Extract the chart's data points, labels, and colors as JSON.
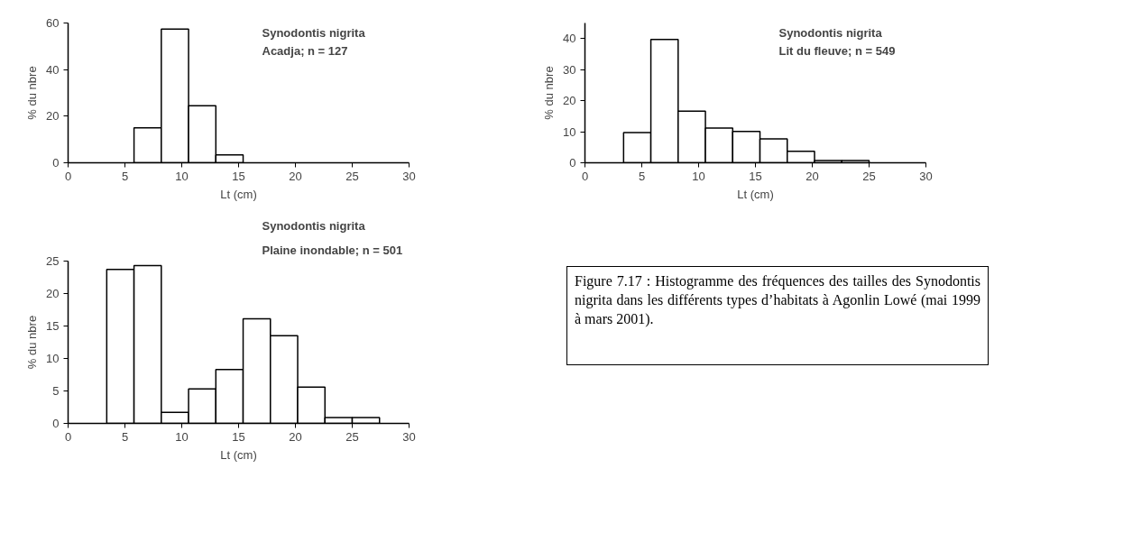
{
  "chart_data": [
    {
      "type": "histogram",
      "title": "Synodontis nigrita",
      "subtitle": "Acadja; n = 127",
      "xlabel": "Lt (cm)",
      "ylabel": "% du nbre",
      "bins": [
        5.8,
        8.2,
        10.6,
        13.0,
        15.4
      ],
      "values": [
        15,
        57.4,
        24.5,
        3.4
      ],
      "color": "#ffffff",
      "xlim": [
        0,
        30
      ],
      "xticks": [
        0,
        5,
        10,
        15,
        20,
        25,
        30
      ],
      "ylim": [
        0,
        60
      ],
      "yticks": [
        0,
        20,
        40,
        60
      ],
      "grid": false
    },
    {
      "type": "histogram",
      "title": "Synodontis nigrita",
      "subtitle": "Lit du fleuve; n = 549",
      "xlabel": "Lt (cm)",
      "ylabel": "% du nbre",
      "bins": [
        3.4,
        5.8,
        8.2,
        10.6,
        13.0,
        15.4,
        17.8,
        20.2,
        22.6,
        25.0
      ],
      "values": [
        9.7,
        39.7,
        16.6,
        11.2,
        10.1,
        7.7,
        3.7,
        0.7,
        0.7
      ],
      "color": "#ffffff",
      "xlim": [
        0,
        30
      ],
      "xticks": [
        0,
        5,
        10,
        15,
        20,
        25,
        30
      ],
      "ylim": [
        0,
        45
      ],
      "yticks": [
        0,
        10,
        20,
        30,
        40
      ],
      "grid": false
    },
    {
      "type": "histogram",
      "title": "Synodontis nigrita",
      "subtitle": "Plaine inondable; n = 501",
      "xlabel": "Lt (cm)",
      "ylabel": "% du nbre",
      "bins": [
        3.4,
        5.8,
        8.2,
        10.6,
        13.0,
        15.4,
        17.8,
        20.2,
        22.6,
        25.0,
        27.4
      ],
      "values": [
        23.7,
        24.3,
        1.7,
        5.3,
        8.3,
        16.1,
        13.5,
        5.6,
        0.9,
        0.9
      ],
      "color": "#ffffff",
      "xlim": [
        0,
        30
      ],
      "xticks": [
        0,
        5,
        10,
        15,
        20,
        25,
        30
      ],
      "ylim": [
        0,
        25
      ],
      "yticks": [
        0,
        5,
        10,
        15,
        20,
        25
      ],
      "grid": false
    },
    {
      "type": "other",
      "annotations": [
        "Figure 7.17 : Histogramme des fréquences des tailles des Synodontis nigrita dans les différents types d’habitats à Agonlin Lowé (mai 1999 à mars 2001)."
      ]
    }
  ]
}
